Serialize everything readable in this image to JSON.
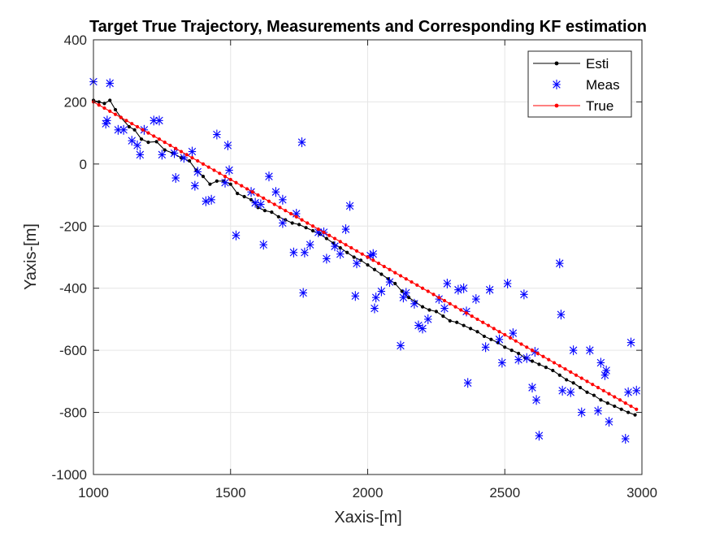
{
  "chart_data": {
    "type": "scatter",
    "title": "Target True Trajectory, Measurements and Corresponding KF estimation",
    "xlabel": "Xaxis-[m]",
    "ylabel": "Yaxis-[m]",
    "xlim": [
      1000,
      3000
    ],
    "ylim": [
      -1000,
      400
    ],
    "xticks": [
      1000,
      1500,
      2000,
      2500,
      3000
    ],
    "yticks": [
      -1000,
      -800,
      -600,
      -400,
      -200,
      0,
      200,
      400
    ],
    "xtick_labels": [
      "1000",
      "1500",
      "2000",
      "2500",
      "3000"
    ],
    "ytick_labels": [
      "-1000",
      "-800",
      "-600",
      "-400",
      "-200",
      "0",
      "200",
      "400"
    ],
    "grid": true,
    "legend_position": "top-right",
    "colors": {
      "esti": "#000000",
      "meas": "#0000ff",
      "true": "#ff0000",
      "grid": "#e6e6e6",
      "axes": "#262626"
    },
    "series": [
      {
        "name": "Esti",
        "style": "line-dot",
        "points": [
          [
            1000,
            205
          ],
          [
            1020,
            200
          ],
          [
            1040,
            195
          ],
          [
            1060,
            205
          ],
          [
            1080,
            175
          ],
          [
            1100,
            150
          ],
          [
            1130,
            120
          ],
          [
            1150,
            110
          ],
          [
            1175,
            80
          ],
          [
            1200,
            70
          ],
          [
            1230,
            72
          ],
          [
            1260,
            45
          ],
          [
            1290,
            35
          ],
          [
            1320,
            20
          ],
          [
            1350,
            10
          ],
          [
            1375,
            -20
          ],
          [
            1400,
            -40
          ],
          [
            1425,
            -65
          ],
          [
            1450,
            -55
          ],
          [
            1475,
            -55
          ],
          [
            1500,
            -65
          ],
          [
            1525,
            -95
          ],
          [
            1550,
            -105
          ],
          [
            1575,
            -115
          ],
          [
            1600,
            -140
          ],
          [
            1625,
            -150
          ],
          [
            1650,
            -155
          ],
          [
            1675,
            -170
          ],
          [
            1700,
            -180
          ],
          [
            1725,
            -190
          ],
          [
            1750,
            -195
          ],
          [
            1775,
            -205
          ],
          [
            1800,
            -215
          ],
          [
            1825,
            -225
          ],
          [
            1850,
            -240
          ],
          [
            1875,
            -255
          ],
          [
            1900,
            -270
          ],
          [
            1925,
            -285
          ],
          [
            1950,
            -300
          ],
          [
            1975,
            -310
          ],
          [
            2000,
            -325
          ],
          [
            2025,
            -340
          ],
          [
            2050,
            -355
          ],
          [
            2075,
            -370
          ],
          [
            2100,
            -385
          ],
          [
            2125,
            -410
          ],
          [
            2150,
            -430
          ],
          [
            2175,
            -445
          ],
          [
            2200,
            -460
          ],
          [
            2225,
            -470
          ],
          [
            2250,
            -475
          ],
          [
            2275,
            -490
          ],
          [
            2300,
            -505
          ],
          [
            2325,
            -510
          ],
          [
            2350,
            -520
          ],
          [
            2375,
            -530
          ],
          [
            2400,
            -540
          ],
          [
            2425,
            -555
          ],
          [
            2450,
            -565
          ],
          [
            2475,
            -575
          ],
          [
            2500,
            -590
          ],
          [
            2525,
            -600
          ],
          [
            2550,
            -610
          ],
          [
            2575,
            -625
          ],
          [
            2600,
            -635
          ],
          [
            2625,
            -645
          ],
          [
            2650,
            -655
          ],
          [
            2675,
            -665
          ],
          [
            2700,
            -680
          ],
          [
            2725,
            -695
          ],
          [
            2750,
            -705
          ],
          [
            2775,
            -720
          ],
          [
            2800,
            -735
          ],
          [
            2825,
            -745
          ],
          [
            2850,
            -760
          ],
          [
            2875,
            -770
          ],
          [
            2900,
            -780
          ],
          [
            2925,
            -790
          ],
          [
            2950,
            -800
          ],
          [
            2975,
            -808
          ]
        ]
      },
      {
        "name": "Meas",
        "style": "asterisk",
        "points": [
          [
            1000,
            265
          ],
          [
            1060,
            260
          ],
          [
            1045,
            130
          ],
          [
            1050,
            140
          ],
          [
            1090,
            110
          ],
          [
            1110,
            110
          ],
          [
            1140,
            75
          ],
          [
            1160,
            60
          ],
          [
            1170,
            30
          ],
          [
            1185,
            110
          ],
          [
            1220,
            140
          ],
          [
            1240,
            140
          ],
          [
            1250,
            30
          ],
          [
            1295,
            35
          ],
          [
            1300,
            -45
          ],
          [
            1330,
            20
          ],
          [
            1360,
            40
          ],
          [
            1370,
            -70
          ],
          [
            1380,
            -25
          ],
          [
            1410,
            -120
          ],
          [
            1430,
            -115
          ],
          [
            1450,
            95
          ],
          [
            1480,
            -60
          ],
          [
            1490,
            60
          ],
          [
            1495,
            -20
          ],
          [
            1520,
            -230
          ],
          [
            1575,
            -90
          ],
          [
            1590,
            -125
          ],
          [
            1610,
            -130
          ],
          [
            1620,
            -260
          ],
          [
            1640,
            -40
          ],
          [
            1665,
            -90
          ],
          [
            1690,
            -115
          ],
          [
            1690,
            -190
          ],
          [
            1730,
            -285
          ],
          [
            1740,
            -160
          ],
          [
            1760,
            70
          ],
          [
            1765,
            -415
          ],
          [
            1770,
            -285
          ],
          [
            1790,
            -260
          ],
          [
            1820,
            -220
          ],
          [
            1840,
            -220
          ],
          [
            1850,
            -305
          ],
          [
            1880,
            -265
          ],
          [
            1900,
            -290
          ],
          [
            1920,
            -210
          ],
          [
            1935,
            -135
          ],
          [
            1955,
            -425
          ],
          [
            1960,
            -320
          ],
          [
            2010,
            -295
          ],
          [
            2020,
            -290
          ],
          [
            2025,
            -465
          ],
          [
            2030,
            -430
          ],
          [
            2050,
            -410
          ],
          [
            2080,
            -380
          ],
          [
            2120,
            -585
          ],
          [
            2130,
            -430
          ],
          [
            2140,
            -415
          ],
          [
            2170,
            -450
          ],
          [
            2185,
            -520
          ],
          [
            2200,
            -530
          ],
          [
            2220,
            -500
          ],
          [
            2260,
            -435
          ],
          [
            2280,
            -465
          ],
          [
            2290,
            -385
          ],
          [
            2330,
            -405
          ],
          [
            2350,
            -400
          ],
          [
            2360,
            -475
          ],
          [
            2365,
            -705
          ],
          [
            2395,
            -435
          ],
          [
            2430,
            -590
          ],
          [
            2445,
            -405
          ],
          [
            2480,
            -565
          ],
          [
            2490,
            -640
          ],
          [
            2510,
            -385
          ],
          [
            2530,
            -545
          ],
          [
            2550,
            -630
          ],
          [
            2570,
            -420
          ],
          [
            2580,
            -625
          ],
          [
            2600,
            -720
          ],
          [
            2610,
            -605
          ],
          [
            2615,
            -760
          ],
          [
            2625,
            -875
          ],
          [
            2700,
            -320
          ],
          [
            2705,
            -485
          ],
          [
            2710,
            -730
          ],
          [
            2740,
            -735
          ],
          [
            2750,
            -600
          ],
          [
            2780,
            -800
          ],
          [
            2810,
            -600
          ],
          [
            2840,
            -795
          ],
          [
            2850,
            -640
          ],
          [
            2865,
            -680
          ],
          [
            2870,
            -665
          ],
          [
            2880,
            -830
          ],
          [
            2940,
            -885
          ],
          [
            2950,
            -735
          ],
          [
            2960,
            -575
          ],
          [
            2980,
            -730
          ]
        ]
      },
      {
        "name": "True",
        "style": "line-dot",
        "range": {
          "x0": 1000,
          "y0": 200,
          "x1": 2980,
          "y1": -790,
          "n": 100
        }
      }
    ]
  }
}
